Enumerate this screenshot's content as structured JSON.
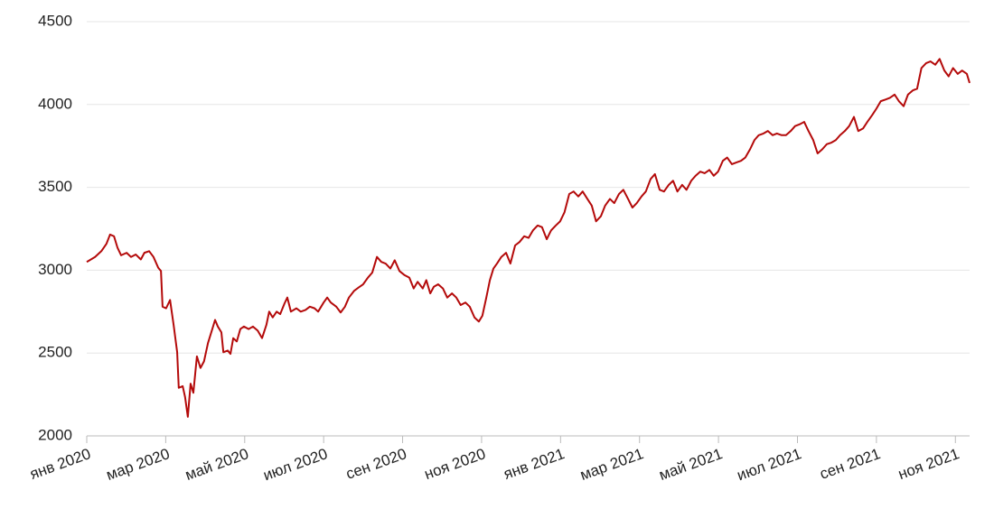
{
  "chart_data": {
    "type": "line",
    "x": [
      0,
      0.21,
      0.37,
      0.5,
      0.59,
      0.69,
      0.78,
      0.87,
      1.01,
      1.12,
      1.24,
      1.37,
      1.46,
      1.58,
      1.69,
      1.81,
      1.88,
      1.92,
      2.01,
      2.11,
      2.2,
      2.29,
      2.33,
      2.43,
      2.49,
      2.56,
      2.63,
      2.7,
      2.79,
      2.88,
      2.97,
      3.07,
      3.18,
      3.25,
      3.32,
      3.41,
      3.46,
      3.57,
      3.64,
      3.71,
      3.8,
      3.89,
      3.98,
      4.1,
      4.21,
      4.33,
      4.44,
      4.55,
      4.62,
      4.71,
      4.81,
      4.9,
      5.01,
      5.08,
      5.17,
      5.31,
      5.42,
      5.54,
      5.65,
      5.77,
      5.86,
      6.0,
      6.09,
      6.18,
      6.32,
      6.43,
      6.54,
      6.64,
      6.77,
      6.91,
      7.0,
      7.12,
      7.23,
      7.35,
      7.46,
      7.57,
      7.69,
      7.8,
      7.92,
      8.05,
      8.17,
      8.28,
      8.38,
      8.51,
      8.6,
      8.7,
      8.79,
      8.9,
      9.02,
      9.13,
      9.25,
      9.36,
      9.47,
      9.59,
      9.7,
      9.82,
      9.93,
      10.02,
      10.12,
      10.21,
      10.3,
      10.39,
      10.5,
      10.62,
      10.73,
      10.85,
      10.96,
      11.08,
      11.19,
      11.3,
      11.42,
      11.53,
      11.65,
      11.76,
      11.88,
      11.99,
      12.1,
      12.22,
      12.33,
      12.45,
      12.56,
      12.68,
      12.79,
      12.9,
      13.02,
      13.13,
      13.25,
      13.36,
      13.48,
      13.59,
      13.71,
      13.82,
      13.93,
      14.05,
      14.16,
      14.28,
      14.39,
      14.51,
      14.62,
      14.74,
      14.85,
      14.96,
      15.08,
      15.19,
      15.31,
      15.42,
      15.54,
      15.65,
      15.77,
      15.88,
      15.99,
      16.11,
      16.22,
      16.34,
      16.45,
      16.57,
      16.68,
      16.8,
      16.91,
      17.02,
      17.14,
      17.25,
      17.37,
      17.48,
      17.6,
      17.71,
      17.83,
      17.94,
      18.05,
      18.17,
      18.28,
      18.4,
      18.51,
      18.63,
      18.74,
      18.86,
      18.97,
      19.08,
      19.2,
      19.31,
      19.43,
      19.54,
      19.66,
      19.77,
      19.89,
      20.0,
      20.11,
      20.23,
      20.34,
      20.46,
      20.57,
      20.69,
      20.8,
      20.92,
      21.03,
      21.14,
      21.26,
      21.37,
      21.49,
      21.6,
      21.72,
      21.83,
      21.94,
      22.06,
      22.17,
      22.29,
      22.36
    ],
    "series": [
      {
        "color": "#b40a0a",
        "values": [
          3050,
          3080,
          3115,
          3160,
          3215,
          3205,
          3135,
          3090,
          3105,
          3080,
          3095,
          3065,
          3105,
          3115,
          3080,
          3015,
          2995,
          2780,
          2770,
          2820,
          2670,
          2505,
          2290,
          2300,
          2235,
          2115,
          2315,
          2260,
          2480,
          2410,
          2450,
          2560,
          2645,
          2700,
          2660,
          2625,
          2505,
          2515,
          2495,
          2590,
          2570,
          2645,
          2660,
          2645,
          2660,
          2635,
          2590,
          2670,
          2750,
          2715,
          2750,
          2735,
          2800,
          2835,
          2750,
          2770,
          2750,
          2760,
          2780,
          2770,
          2750,
          2805,
          2835,
          2805,
          2780,
          2745,
          2780,
          2835,
          2875,
          2900,
          2915,
          2955,
          2985,
          3080,
          3050,
          3040,
          3010,
          3060,
          2995,
          2970,
          2955,
          2890,
          2930,
          2890,
          2940,
          2860,
          2900,
          2915,
          2890,
          2835,
          2860,
          2835,
          2790,
          2805,
          2780,
          2715,
          2690,
          2725,
          2835,
          2940,
          3010,
          3040,
          3080,
          3105,
          3040,
          3150,
          3170,
          3205,
          3195,
          3240,
          3270,
          3260,
          3187,
          3240,
          3270,
          3295,
          3350,
          3460,
          3475,
          3445,
          3475,
          3430,
          3390,
          3295,
          3325,
          3390,
          3430,
          3405,
          3460,
          3485,
          3430,
          3378,
          3405,
          3445,
          3475,
          3550,
          3580,
          3485,
          3475,
          3515,
          3540,
          3475,
          3515,
          3485,
          3540,
          3570,
          3595,
          3585,
          3605,
          3570,
          3595,
          3660,
          3680,
          3640,
          3650,
          3660,
          3680,
          3730,
          3785,
          3815,
          3825,
          3840,
          3815,
          3825,
          3815,
          3815,
          3840,
          3870,
          3880,
          3895,
          3840,
          3785,
          3705,
          3730,
          3760,
          3770,
          3785,
          3815,
          3840,
          3870,
          3925,
          3840,
          3855,
          3895,
          3935,
          3975,
          4020,
          4030,
          4040,
          4060,
          4020,
          3990,
          4060,
          4085,
          4095,
          4220,
          4250,
          4260,
          4240,
          4275,
          4205,
          4170,
          4220,
          4185,
          4205,
          4185,
          4130
        ]
      }
    ],
    "xlim": [
      0,
      22.36
    ],
    "xticks": [
      {
        "value": 0,
        "label": "янв 2020"
      },
      {
        "value": 2,
        "label": "мар 2020"
      },
      {
        "value": 4,
        "label": "май 2020"
      },
      {
        "value": 6,
        "label": "июл 2020"
      },
      {
        "value": 8,
        "label": "сен 2020"
      },
      {
        "value": 10,
        "label": "ноя 2020"
      },
      {
        "value": 12,
        "label": "янв 2021"
      },
      {
        "value": 14,
        "label": "мар 2021"
      },
      {
        "value": 16,
        "label": "май 2021"
      },
      {
        "value": 18,
        "label": "июл 2021"
      },
      {
        "value": 20,
        "label": "сен 2021"
      },
      {
        "value": 22,
        "label": "ноя 2021"
      }
    ],
    "ylim": [
      2000,
      4500
    ],
    "yticks": [
      2000,
      2500,
      3000,
      3500,
      4000,
      4500
    ],
    "grid": true
  }
}
